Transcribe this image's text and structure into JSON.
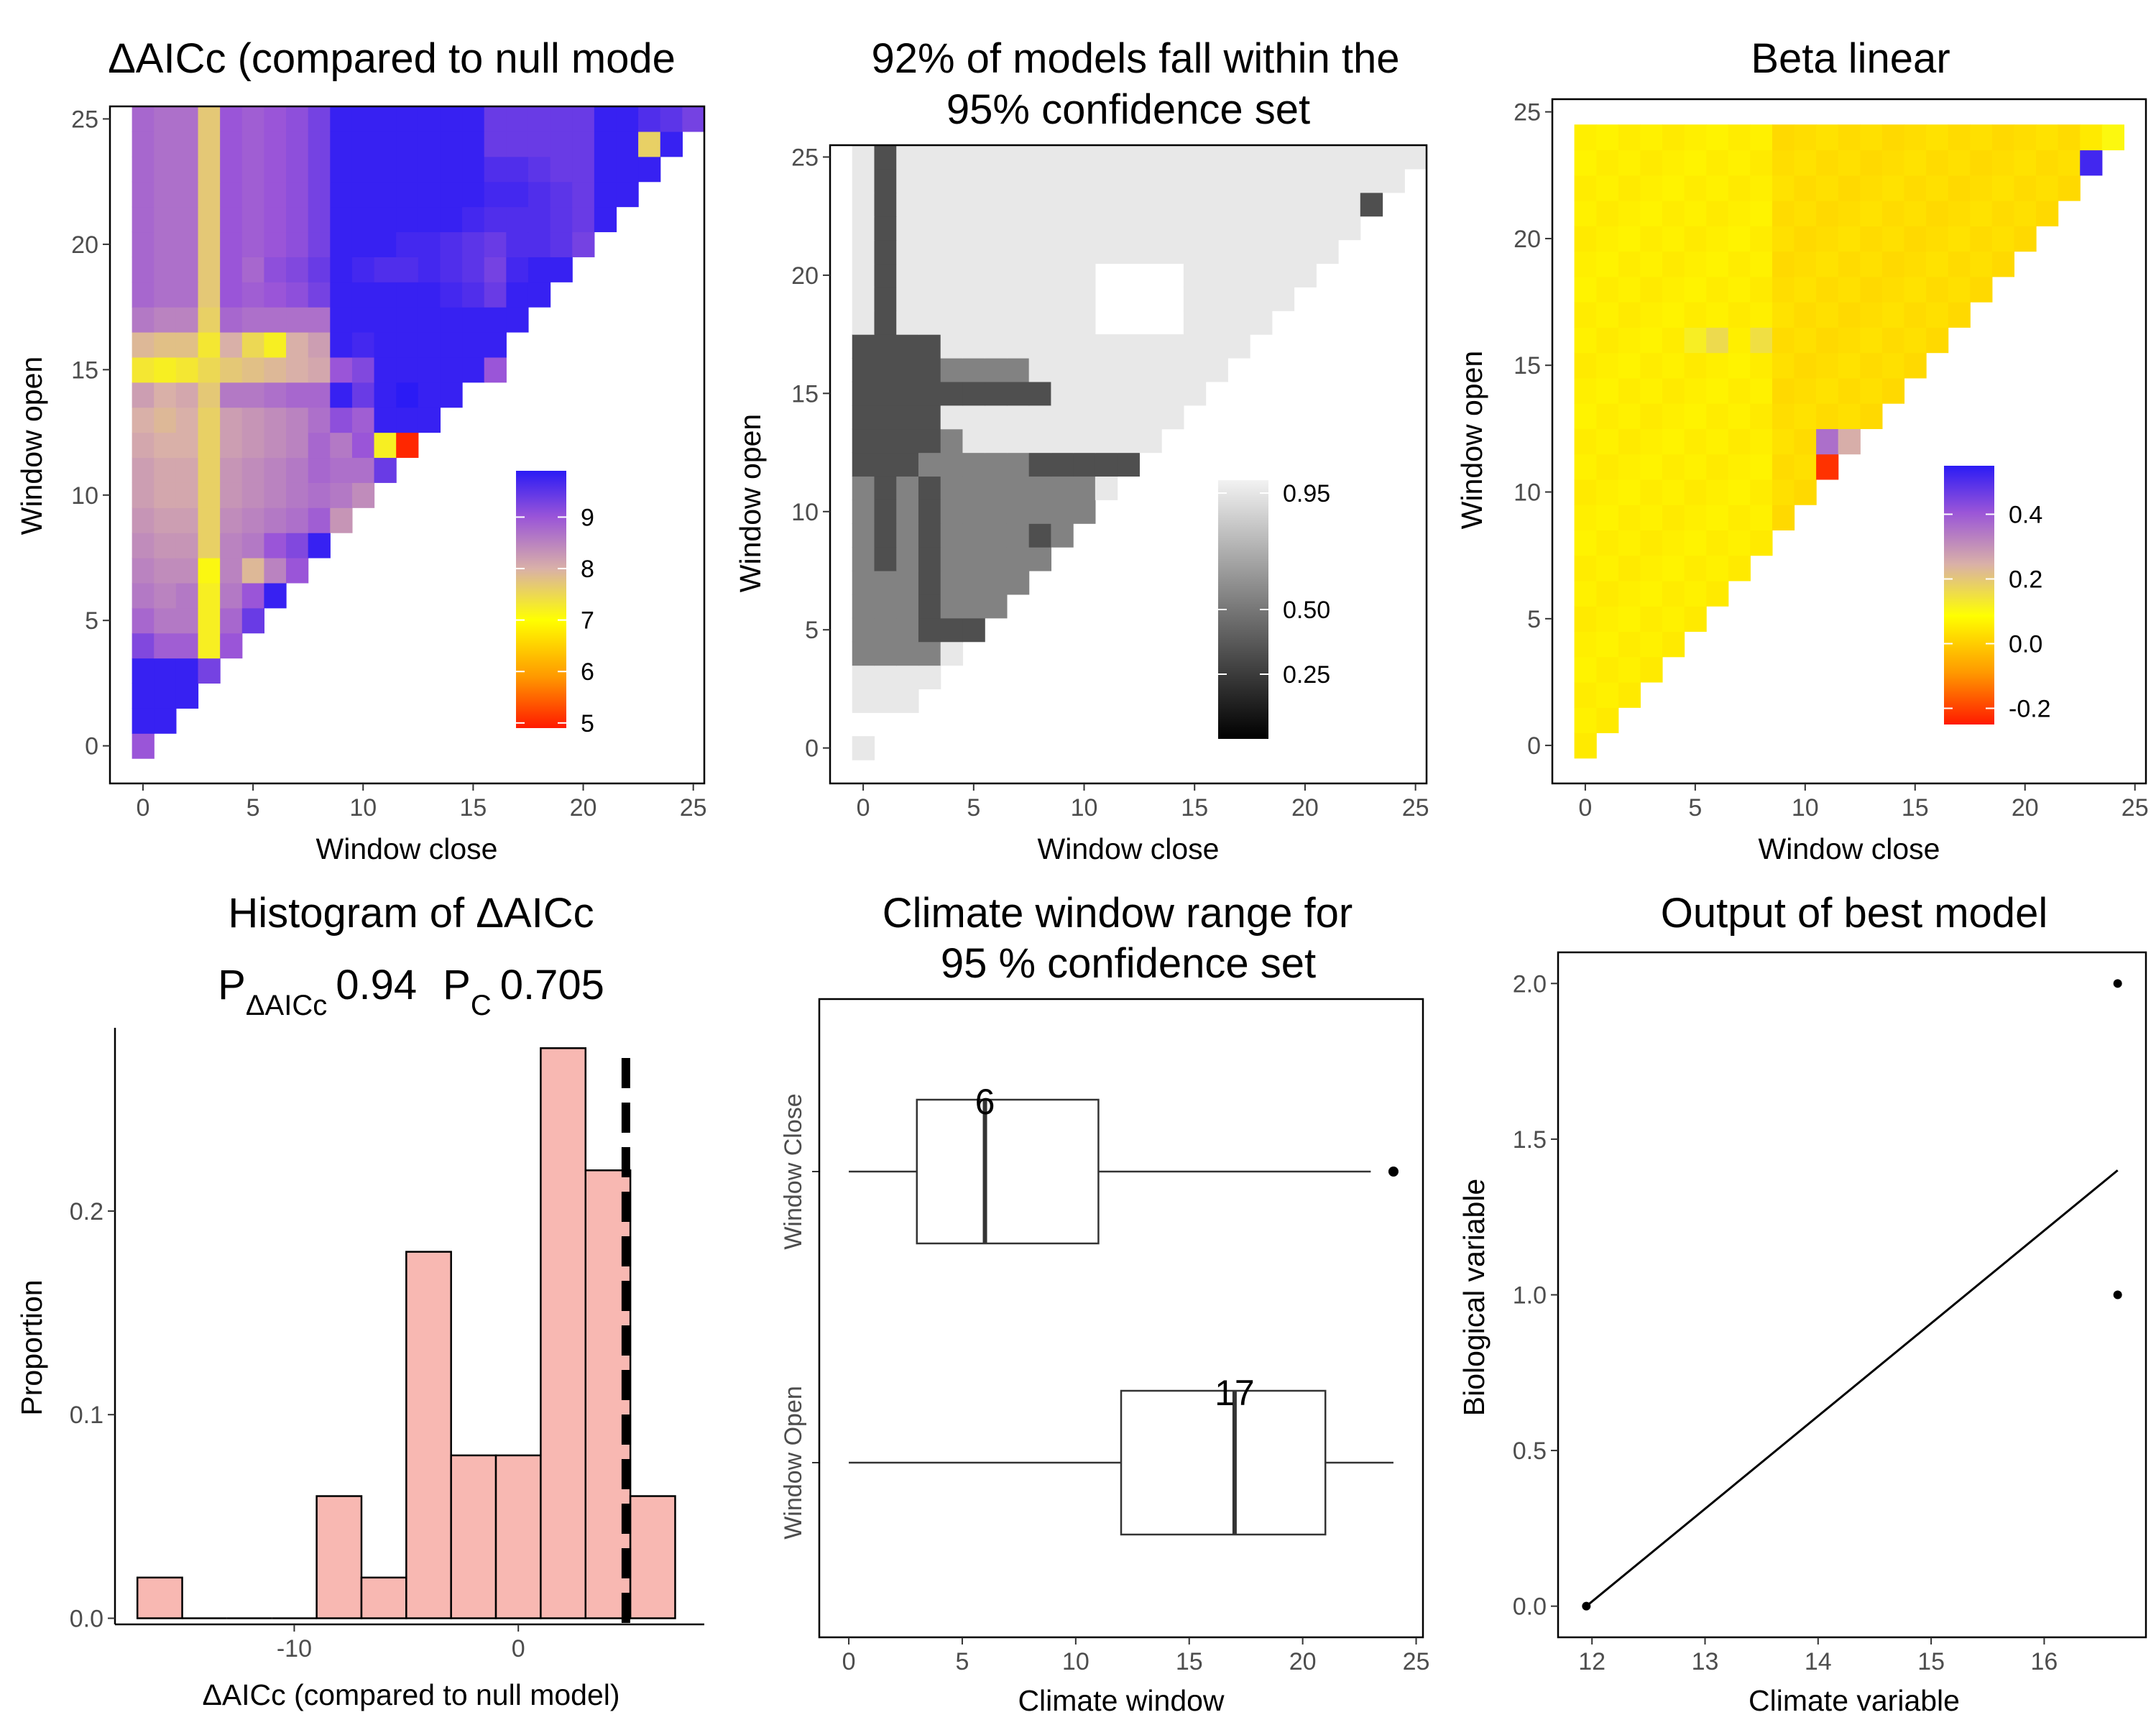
{
  "chart_data": [
    {
      "type": "heatmap",
      "title": "ΔAICc (compared to null mode",
      "xlabel": "Window close",
      "ylabel": "Window open",
      "xticks": [
        0,
        5,
        10,
        15,
        20,
        25
      ],
      "yticks": [
        0,
        5,
        10,
        15,
        20,
        25
      ],
      "xlim": [
        -1.5,
        25.5
      ],
      "ylim": [
        -1.5,
        25.5
      ],
      "colorbar": {
        "ticks": [
          5,
          6,
          7,
          8,
          9
        ],
        "range": [
          4.9,
          9.9
        ],
        "colors": [
          "#ff1a00",
          "#ff9900",
          "#ffff00",
          "#d9b0a8",
          "#9a55d8",
          "#2b1bf5"
        ]
      },
      "cell_values_by_window_open": [
        [
          9.0
        ],
        [
          9.8,
          9.8
        ],
        [
          9.8,
          9.8,
          9.8
        ],
        [
          9.8,
          9.8,
          9.8,
          9.3
        ],
        [
          9.2,
          8.9,
          8.9,
          7.2,
          9.0
        ],
        [
          8.8,
          8.6,
          8.6,
          7.2,
          8.8,
          9.4
        ],
        [
          8.6,
          8.5,
          8.6,
          7.2,
          8.6,
          9.0,
          9.8
        ],
        [
          8.5,
          8.4,
          8.4,
          7.1,
          8.5,
          7.9,
          8.5,
          9.0
        ],
        [
          8.4,
          8.3,
          8.3,
          7.6,
          8.5,
          8.6,
          9.0,
          9.2,
          9.8
        ],
        [
          8.3,
          8.2,
          8.2,
          7.6,
          8.4,
          8.5,
          8.6,
          8.7,
          8.9,
          8.3
        ],
        [
          8.2,
          8.1,
          8.1,
          7.6,
          8.3,
          8.4,
          8.5,
          8.6,
          8.7,
          8.6,
          8.4
        ],
        [
          8.2,
          8.1,
          8.1,
          7.6,
          8.3,
          8.4,
          8.5,
          8.6,
          8.8,
          8.7,
          8.7,
          9.4
        ],
        [
          8.1,
          8.0,
          8.0,
          7.6,
          8.2,
          8.3,
          8.4,
          8.5,
          8.8,
          8.6,
          9.0,
          7.2,
          5.0
        ],
        [
          8.0,
          7.9,
          8.0,
          7.6,
          8.2,
          8.3,
          8.4,
          8.5,
          8.7,
          9.1,
          8.9,
          9.8,
          9.8,
          9.8
        ],
        [
          8.2,
          8.0,
          8.1,
          7.7,
          8.6,
          8.6,
          8.7,
          8.8,
          8.8,
          9.8,
          9.4,
          9.8,
          9.9,
          9.8,
          9.8
        ],
        [
          7.3,
          7.2,
          7.3,
          7.5,
          7.7,
          7.8,
          7.9,
          8.0,
          8.1,
          9.0,
          9.2,
          9.8,
          9.8,
          9.8,
          9.8,
          9.8,
          9.0
        ],
        [
          7.9,
          7.8,
          7.8,
          7.3,
          8.0,
          7.5,
          7.2,
          8.0,
          8.2,
          9.8,
          9.7,
          9.8,
          9.8,
          9.8,
          9.8,
          9.8,
          9.8
        ],
        [
          8.6,
          8.5,
          8.5,
          7.6,
          8.8,
          8.7,
          8.7,
          8.7,
          8.7,
          9.8,
          9.8,
          9.8,
          9.8,
          9.8,
          9.8,
          9.8,
          9.8,
          9.8
        ],
        [
          8.8,
          8.7,
          8.7,
          7.7,
          9.0,
          8.9,
          9.0,
          9.1,
          9.3,
          9.8,
          9.8,
          9.8,
          9.8,
          9.8,
          9.7,
          9.6,
          9.4,
          9.8,
          9.8
        ],
        [
          8.8,
          8.7,
          8.7,
          7.7,
          9.0,
          8.8,
          9.1,
          9.2,
          9.4,
          9.8,
          9.7,
          9.6,
          9.6,
          9.7,
          9.6,
          9.5,
          9.3,
          9.7,
          9.8,
          9.8
        ],
        [
          8.8,
          8.7,
          8.7,
          7.7,
          9.0,
          8.9,
          9.0,
          9.1,
          9.3,
          9.8,
          9.8,
          9.8,
          9.7,
          9.7,
          9.6,
          9.5,
          9.4,
          9.6,
          9.6,
          9.5,
          9.3
        ],
        [
          8.8,
          8.7,
          8.7,
          7.7,
          9.0,
          8.9,
          9.0,
          9.1,
          9.3,
          9.8,
          9.8,
          9.8,
          9.8,
          9.8,
          9.8,
          9.7,
          9.6,
          9.6,
          9.6,
          9.5,
          9.4,
          9.8
        ],
        [
          8.8,
          8.7,
          8.7,
          7.7,
          9.0,
          8.9,
          9.0,
          9.1,
          9.3,
          9.8,
          9.8,
          9.8,
          9.8,
          9.8,
          9.8,
          9.8,
          9.7,
          9.7,
          9.6,
          9.5,
          9.4,
          9.8,
          9.8
        ],
        [
          8.8,
          8.7,
          8.7,
          7.7,
          9.0,
          8.9,
          9.0,
          9.1,
          9.3,
          9.8,
          9.8,
          9.8,
          9.8,
          9.8,
          9.8,
          9.8,
          9.6,
          9.6,
          9.5,
          9.4,
          9.4,
          9.8,
          9.8,
          9.8
        ],
        [
          8.8,
          8.7,
          8.7,
          7.7,
          9.0,
          8.9,
          9.0,
          9.1,
          9.3,
          9.8,
          9.8,
          9.8,
          9.8,
          9.8,
          9.8,
          9.8,
          9.4,
          9.4,
          9.4,
          9.4,
          9.4,
          9.8,
          9.8,
          7.6,
          9.8
        ],
        [
          8.8,
          8.7,
          8.7,
          7.7,
          9.0,
          8.9,
          9.0,
          9.1,
          9.3,
          9.8,
          9.8,
          9.8,
          9.8,
          9.8,
          9.8,
          9.8,
          9.4,
          9.4,
          9.4,
          9.4,
          9.4,
          9.8,
          9.8,
          9.6,
          9.5,
          9.3
        ]
      ]
    },
    {
      "type": "heatmap",
      "title": "92% of models fall within the",
      "subtitle": "95% confidence set",
      "xlabel": "Window close",
      "ylabel": "Window open",
      "xticks": [
        0,
        5,
        10,
        15,
        20,
        25
      ],
      "yticks": [
        0,
        5,
        10,
        15,
        20,
        25
      ],
      "xlim": [
        -1.5,
        25.5
      ],
      "ylim": [
        -1.5,
        25.5
      ],
      "colorbar": {
        "ticks": [
          0.25,
          0.5,
          0.95
        ],
        "range": [
          0,
          1
        ]
      },
      "levels": {
        "dark": 0.2,
        "mid": 0.45,
        "light": 0.95
      },
      "dark_cells": [
        [
          3,
          7
        ],
        [
          1,
          8
        ],
        [
          1,
          9
        ],
        [
          1,
          10
        ],
        [
          1,
          11
        ],
        [
          1,
          12
        ],
        [
          1,
          13
        ],
        [
          1,
          14
        ],
        [
          1,
          15
        ],
        [
          1,
          16
        ],
        [
          1,
          17
        ],
        [
          1,
          18
        ],
        [
          1,
          19
        ],
        [
          1,
          20
        ],
        [
          1,
          21
        ],
        [
          1,
          22
        ],
        [
          1,
          23
        ],
        [
          1,
          24
        ],
        [
          1,
          25
        ],
        [
          0,
          12
        ],
        [
          2,
          12
        ],
        [
          0,
          13
        ],
        [
          1,
          13
        ],
        [
          2,
          13
        ],
        [
          3,
          13
        ],
        [
          0,
          14
        ],
        [
          1,
          14
        ],
        [
          2,
          14
        ],
        [
          3,
          14
        ],
        [
          0,
          15
        ],
        [
          1,
          15
        ],
        [
          2,
          15
        ],
        [
          3,
          15
        ],
        [
          4,
          15
        ],
        [
          5,
          15
        ],
        [
          6,
          15
        ],
        [
          7,
          15
        ],
        [
          8,
          15
        ],
        [
          0,
          16
        ],
        [
          1,
          16
        ],
        [
          2,
          16
        ],
        [
          3,
          16
        ],
        [
          0,
          17
        ],
        [
          1,
          17
        ],
        [
          2,
          17
        ],
        [
          3,
          17
        ],
        [
          4,
          5
        ],
        [
          5,
          5
        ],
        [
          8,
          9
        ],
        [
          8,
          12
        ],
        [
          9,
          12
        ],
        [
          10,
          12
        ],
        [
          11,
          12
        ],
        [
          12,
          12
        ],
        [
          23,
          23
        ],
        [
          3,
          8
        ],
        [
          3,
          9
        ],
        [
          3,
          10
        ],
        [
          3,
          11
        ],
        [
          3,
          5
        ],
        [
          3,
          6
        ]
      ],
      "mid_cells_rule": "columns 0-3 and rows 4-17 outside dark cells, plus the grey block between columns 4-12 and rows 5-16",
      "light_cells_rule": "all remaining valid cells (Window open >= Window close)"
    },
    {
      "type": "heatmap",
      "title": "Beta linear",
      "xlabel": "Window close",
      "ylabel": "Window open",
      "xticks": [
        0,
        5,
        10,
        15,
        20,
        25
      ],
      "yticks": [
        0,
        5,
        10,
        15,
        20,
        25
      ],
      "xlim": [
        -1.5,
        25.5
      ],
      "ylim": [
        -1.5,
        25.5
      ],
      "colorbar": {
        "ticks": [
          -0.2,
          0.0,
          0.2,
          0.4
        ],
        "range": [
          -0.25,
          0.55
        ],
        "colors": [
          "#ff1a00",
          "#ff9900",
          "#ffff00",
          "#d9b0a8",
          "#9a55d8",
          "#2b1bf5"
        ]
      },
      "special_cells": [
        {
          "x": 23,
          "y": 23,
          "value": 0.52
        },
        {
          "x": 23,
          "y": 24,
          "value": 0.05
        },
        {
          "x": 24,
          "y": 24,
          "value": 0.1
        },
        {
          "x": 11,
          "y": 11,
          "value": -0.22
        },
        {
          "x": 11,
          "y": 12,
          "value": 0.36
        },
        {
          "x": 12,
          "y": 12,
          "value": 0.25
        },
        {
          "x": 6,
          "y": 16,
          "value": 0.16
        },
        {
          "x": 8,
          "y": 16,
          "value": 0.15
        },
        {
          "x": 5,
          "y": 16,
          "value": 0.12
        }
      ],
      "base_value": 0.05,
      "high_region": {
        "close_min": 9,
        "value": 0.02
      }
    },
    {
      "type": "bar",
      "title": "Histogram of ΔAICc",
      "subtitle": {
        "p_aicc_label": "P",
        "p_aicc_sub": "ΔAICc",
        "p_aicc_value": "0.94",
        "p_c_label": "P",
        "p_c_sub": "C",
        "p_c_value": "0.705"
      },
      "xlabel": "ΔAICc (compared to null model)",
      "ylabel": "Proportion",
      "xticks": [
        -10,
        0
      ],
      "yticks": [
        0.0,
        0.1,
        0.2
      ],
      "ytick_labels": [
        "0.0",
        "0.1",
        "0.2"
      ],
      "xlim": [
        -18,
        8.3
      ],
      "ylim": [
        -0.003,
        0.29
      ],
      "bin_width": 2,
      "bin_starts": [
        -17,
        -15,
        -13,
        -11,
        -9,
        -7,
        -5,
        -3,
        -1,
        1,
        3,
        5
      ],
      "values": [
        0.02,
        0,
        0,
        0,
        0.06,
        0.02,
        0.18,
        0.08,
        0.08,
        0.28,
        0.22,
        0.06
      ],
      "vline_x": 4.8,
      "fill": "#f8b8b2"
    },
    {
      "type": "boxplot",
      "title": "Climate window range for",
      "subtitle": "95 % confidence set",
      "xlabel": "Climate window",
      "ylabel": "",
      "xticks": [
        0,
        5,
        10,
        15,
        20,
        25
      ],
      "xlim": [
        -1.3,
        25.3
      ],
      "boxes": [
        {
          "label": "Window Close",
          "whisker_low": 0,
          "q1": 3,
          "median": 6,
          "q3": 11,
          "whisker_high": 23,
          "outliers": [
            24
          ],
          "median_label": "6"
        },
        {
          "label": "Window Open",
          "whisker_low": 0,
          "q1": 12,
          "median": 17,
          "q3": 21,
          "whisker_high": 24,
          "outliers": [],
          "median_label": "17"
        }
      ]
    },
    {
      "type": "line",
      "title": "Output of best model",
      "xlabel": "Climate variable",
      "ylabel": "Biological variable",
      "xticks": [
        12,
        13,
        14,
        15,
        16
      ],
      "yticks": [
        0.0,
        0.5,
        1.0,
        1.5,
        2.0
      ],
      "ytick_labels": [
        "0.0",
        "0.5",
        "1.0",
        "1.5",
        "2.0"
      ],
      "xlim": [
        11.7,
        16.9
      ],
      "ylim": [
        -0.1,
        2.1
      ],
      "points": [
        {
          "x": 11.95,
          "y": 0
        },
        {
          "x": 16.65,
          "y": 1
        },
        {
          "x": 16.65,
          "y": 2
        }
      ],
      "fit_line": [
        {
          "x": 11.95,
          "y": 0
        },
        {
          "x": 16.65,
          "y": 1.4
        }
      ]
    }
  ]
}
